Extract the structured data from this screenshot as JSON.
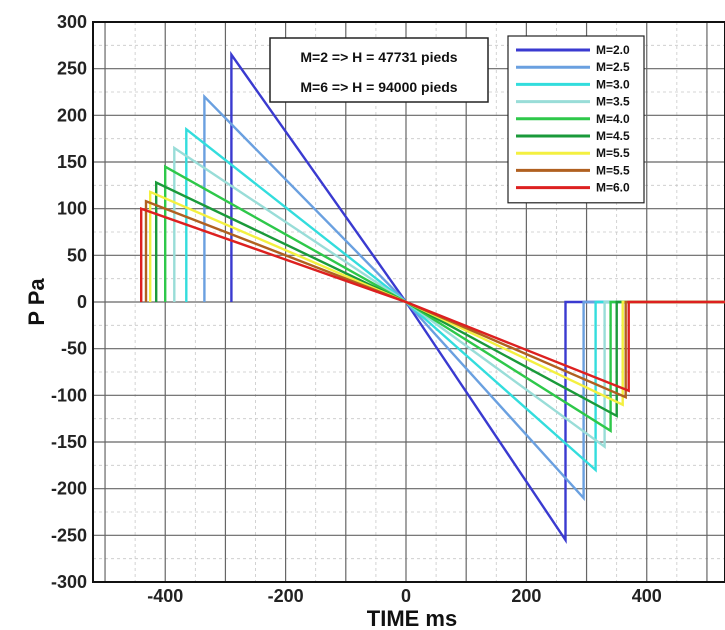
{
  "chart_data": {
    "type": "line",
    "xlabel": "TIME ms",
    "ylabel": "P Pa",
    "xlim": [
      -520,
      530
    ],
    "ylim": [
      -300,
      300
    ],
    "xticks": [
      -400,
      -200,
      0,
      200,
      400
    ],
    "yticks": [
      300,
      250,
      200,
      150,
      100,
      50,
      0,
      -50,
      -100,
      -150,
      -200,
      -250,
      -300
    ],
    "grid": true,
    "legend_position": "top-right",
    "annotations": [
      "M=2 => H = 47731 pieds",
      "M=6 => H = 94000 pieds"
    ],
    "series": [
      {
        "name": "M=2.0",
        "color": "#3a3ad0",
        "x": [
          -290,
          -290,
          0,
          265,
          265,
          530
        ],
        "y": [
          0,
          265,
          0,
          -255,
          0,
          0
        ]
      },
      {
        "name": "M=2.5",
        "color": "#6aa0e0",
        "x": [
          -335,
          -335,
          0,
          295,
          295,
          530
        ],
        "y": [
          0,
          220,
          0,
          -210,
          0,
          0
        ]
      },
      {
        "name": "M=3.0",
        "color": "#33dddd",
        "x": [
          -365,
          -365,
          0,
          315,
          315,
          530
        ],
        "y": [
          0,
          185,
          0,
          -180,
          0,
          0
        ]
      },
      {
        "name": "M=3.5",
        "color": "#99ddd8",
        "x": [
          -385,
          -385,
          0,
          330,
          330,
          530
        ],
        "y": [
          0,
          165,
          0,
          -155,
          0,
          0
        ]
      },
      {
        "name": "M=4.0",
        "color": "#2ec84a",
        "x": [
          -400,
          -400,
          0,
          340,
          340,
          530
        ],
        "y": [
          0,
          145,
          0,
          -138,
          0,
          0
        ]
      },
      {
        "name": "M=4.5",
        "color": "#1a9a3a",
        "x": [
          -415,
          -415,
          0,
          350,
          350,
          530
        ],
        "y": [
          0,
          128,
          0,
          -122,
          0,
          0
        ]
      },
      {
        "name": "M=5.5",
        "color": "#f4f040",
        "x": [
          -425,
          -425,
          0,
          360,
          360,
          530
        ],
        "y": [
          0,
          118,
          0,
          -110,
          0,
          0
        ]
      },
      {
        "name": "M=5.5",
        "color": "#b06020",
        "x": [
          -432,
          -432,
          0,
          365,
          365,
          530
        ],
        "y": [
          0,
          108,
          0,
          -102,
          0,
          0
        ]
      },
      {
        "name": "M=6.0",
        "color": "#dd2020",
        "x": [
          -440,
          -440,
          0,
          370,
          370,
          530
        ],
        "y": [
          0,
          100,
          0,
          -95,
          0,
          0
        ]
      }
    ]
  }
}
